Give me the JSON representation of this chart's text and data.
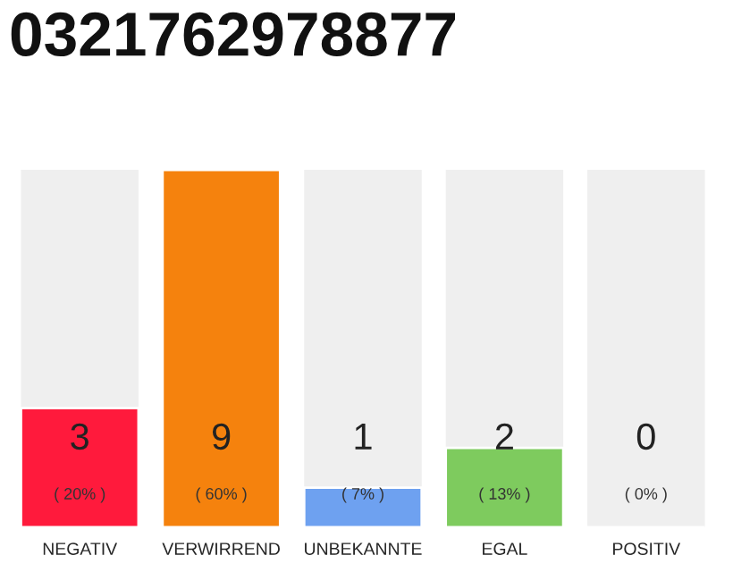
{
  "chart_data": {
    "type": "bar",
    "title": "0321762978877",
    "categories": [
      "NEGATIV",
      "VERWIRREND",
      "UNBEKANNTE",
      "EGAL",
      "POSITIV"
    ],
    "values": [
      3,
      9,
      1,
      2,
      0
    ],
    "colors": [
      "#ff1a3c",
      "#f5820d",
      "#6ea1f0",
      "#7ecb5e",
      null
    ],
    "value_labels": [
      "3\n( 20% )",
      "9\n( 60% )",
      "1\n( 7% )",
      "2\n( 13% )",
      "0\n( 0% )"
    ],
    "grid": false,
    "legend": false
  }
}
